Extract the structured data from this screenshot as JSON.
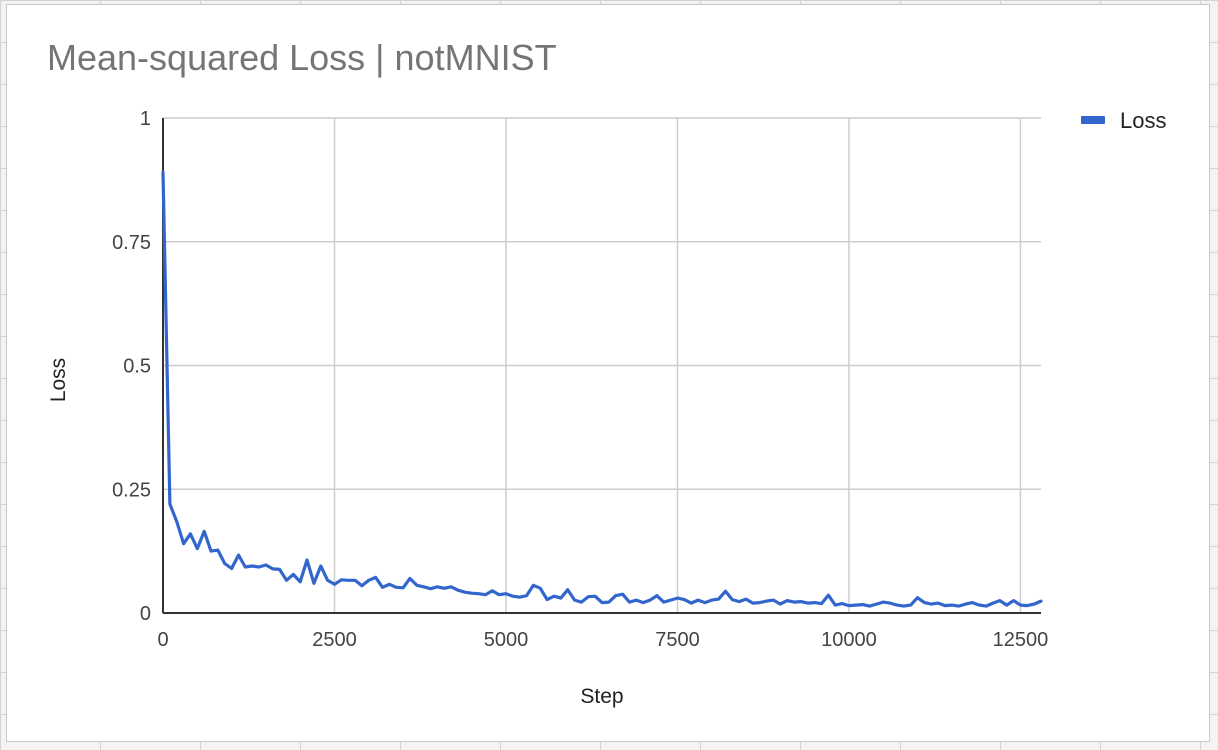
{
  "chart_data": {
    "type": "line",
    "title": "Mean-squared Loss | notMNIST",
    "xlabel": "Step",
    "ylabel": "Loss",
    "xlim": [
      0,
      12800
    ],
    "ylim": [
      0,
      1
    ],
    "xticks": [
      "0",
      "2500",
      "5000",
      "7500",
      "10000",
      "12500"
    ],
    "yticks": [
      "0",
      "0.25",
      "0.5",
      "0.75",
      "1"
    ],
    "grid": true,
    "legend_position": "top-right",
    "series": [
      {
        "name": "Loss",
        "color": "#3366cc",
        "x": [
          0,
          100,
          200,
          300,
          400,
          500,
          600,
          700,
          800,
          900,
          1000,
          1100,
          1200,
          1300,
          1400,
          1500,
          1600,
          1700,
          1800,
          1900,
          2000,
          2100,
          2200,
          2300,
          2400,
          2500,
          2600,
          2700,
          2800,
          2900,
          3000,
          3100,
          3200,
          3300,
          3400,
          3500,
          3600,
          3700,
          3800,
          3900,
          4000,
          4100,
          4200,
          4300,
          4400,
          4500,
          4600,
          4700,
          4800,
          4900,
          5000,
          5100,
          5200,
          5300,
          5400,
          5500,
          5600,
          5700,
          5800,
          5900,
          6000,
          6100,
          6200,
          6300,
          6400,
          6500,
          6600,
          6700,
          6800,
          6900,
          7000,
          7100,
          7200,
          7300,
          7400,
          7500,
          7600,
          7700,
          7800,
          7900,
          8000,
          8100,
          8200,
          8300,
          8400,
          8500,
          8600,
          8700,
          8800,
          8900,
          9000,
          9100,
          9200,
          9300,
          9400,
          9500,
          9600,
          9700,
          9800,
          9900,
          10000,
          10100,
          10200,
          10300,
          10400,
          10500,
          10600,
          10700,
          10800,
          10900,
          11000,
          11100,
          11200,
          11300,
          11400,
          11500,
          11600,
          11700,
          11800,
          11900,
          12000,
          12100,
          12200,
          12300,
          12400,
          12500,
          12600,
          12700,
          12800
        ],
        "values": [
          0.89,
          0.22,
          0.185,
          0.14,
          0.16,
          0.13,
          0.165,
          0.125,
          0.127,
          0.1,
          0.09,
          0.117,
          0.093,
          0.095,
          0.093,
          0.097,
          0.089,
          0.088,
          0.066,
          0.078,
          0.063,
          0.107,
          0.06,
          0.095,
          0.066,
          0.058,
          0.067,
          0.066,
          0.066,
          0.055,
          0.066,
          0.072,
          0.052,
          0.058,
          0.052,
          0.051,
          0.07,
          0.056,
          0.053,
          0.049,
          0.053,
          0.05,
          0.053,
          0.046,
          0.042,
          0.04,
          0.039,
          0.037,
          0.045,
          0.037,
          0.039,
          0.034,
          0.032,
          0.035,
          0.056,
          0.05,
          0.027,
          0.034,
          0.03,
          0.047,
          0.026,
          0.022,
          0.033,
          0.034,
          0.021,
          0.022,
          0.035,
          0.038,
          0.022,
          0.026,
          0.021,
          0.026,
          0.035,
          0.022,
          0.026,
          0.03,
          0.027,
          0.02,
          0.026,
          0.021,
          0.026,
          0.028,
          0.044,
          0.027,
          0.023,
          0.028,
          0.02,
          0.021,
          0.024,
          0.026,
          0.018,
          0.025,
          0.022,
          0.023,
          0.02,
          0.021,
          0.019,
          0.036,
          0.016,
          0.019,
          0.015,
          0.016,
          0.017,
          0.014,
          0.018,
          0.022,
          0.02,
          0.016,
          0.014,
          0.016,
          0.031,
          0.021,
          0.018,
          0.02,
          0.015,
          0.016,
          0.014,
          0.018,
          0.021,
          0.016,
          0.014,
          0.02,
          0.025,
          0.016,
          0.025,
          0.016,
          0.015,
          0.018,
          0.024
        ]
      }
    ]
  }
}
